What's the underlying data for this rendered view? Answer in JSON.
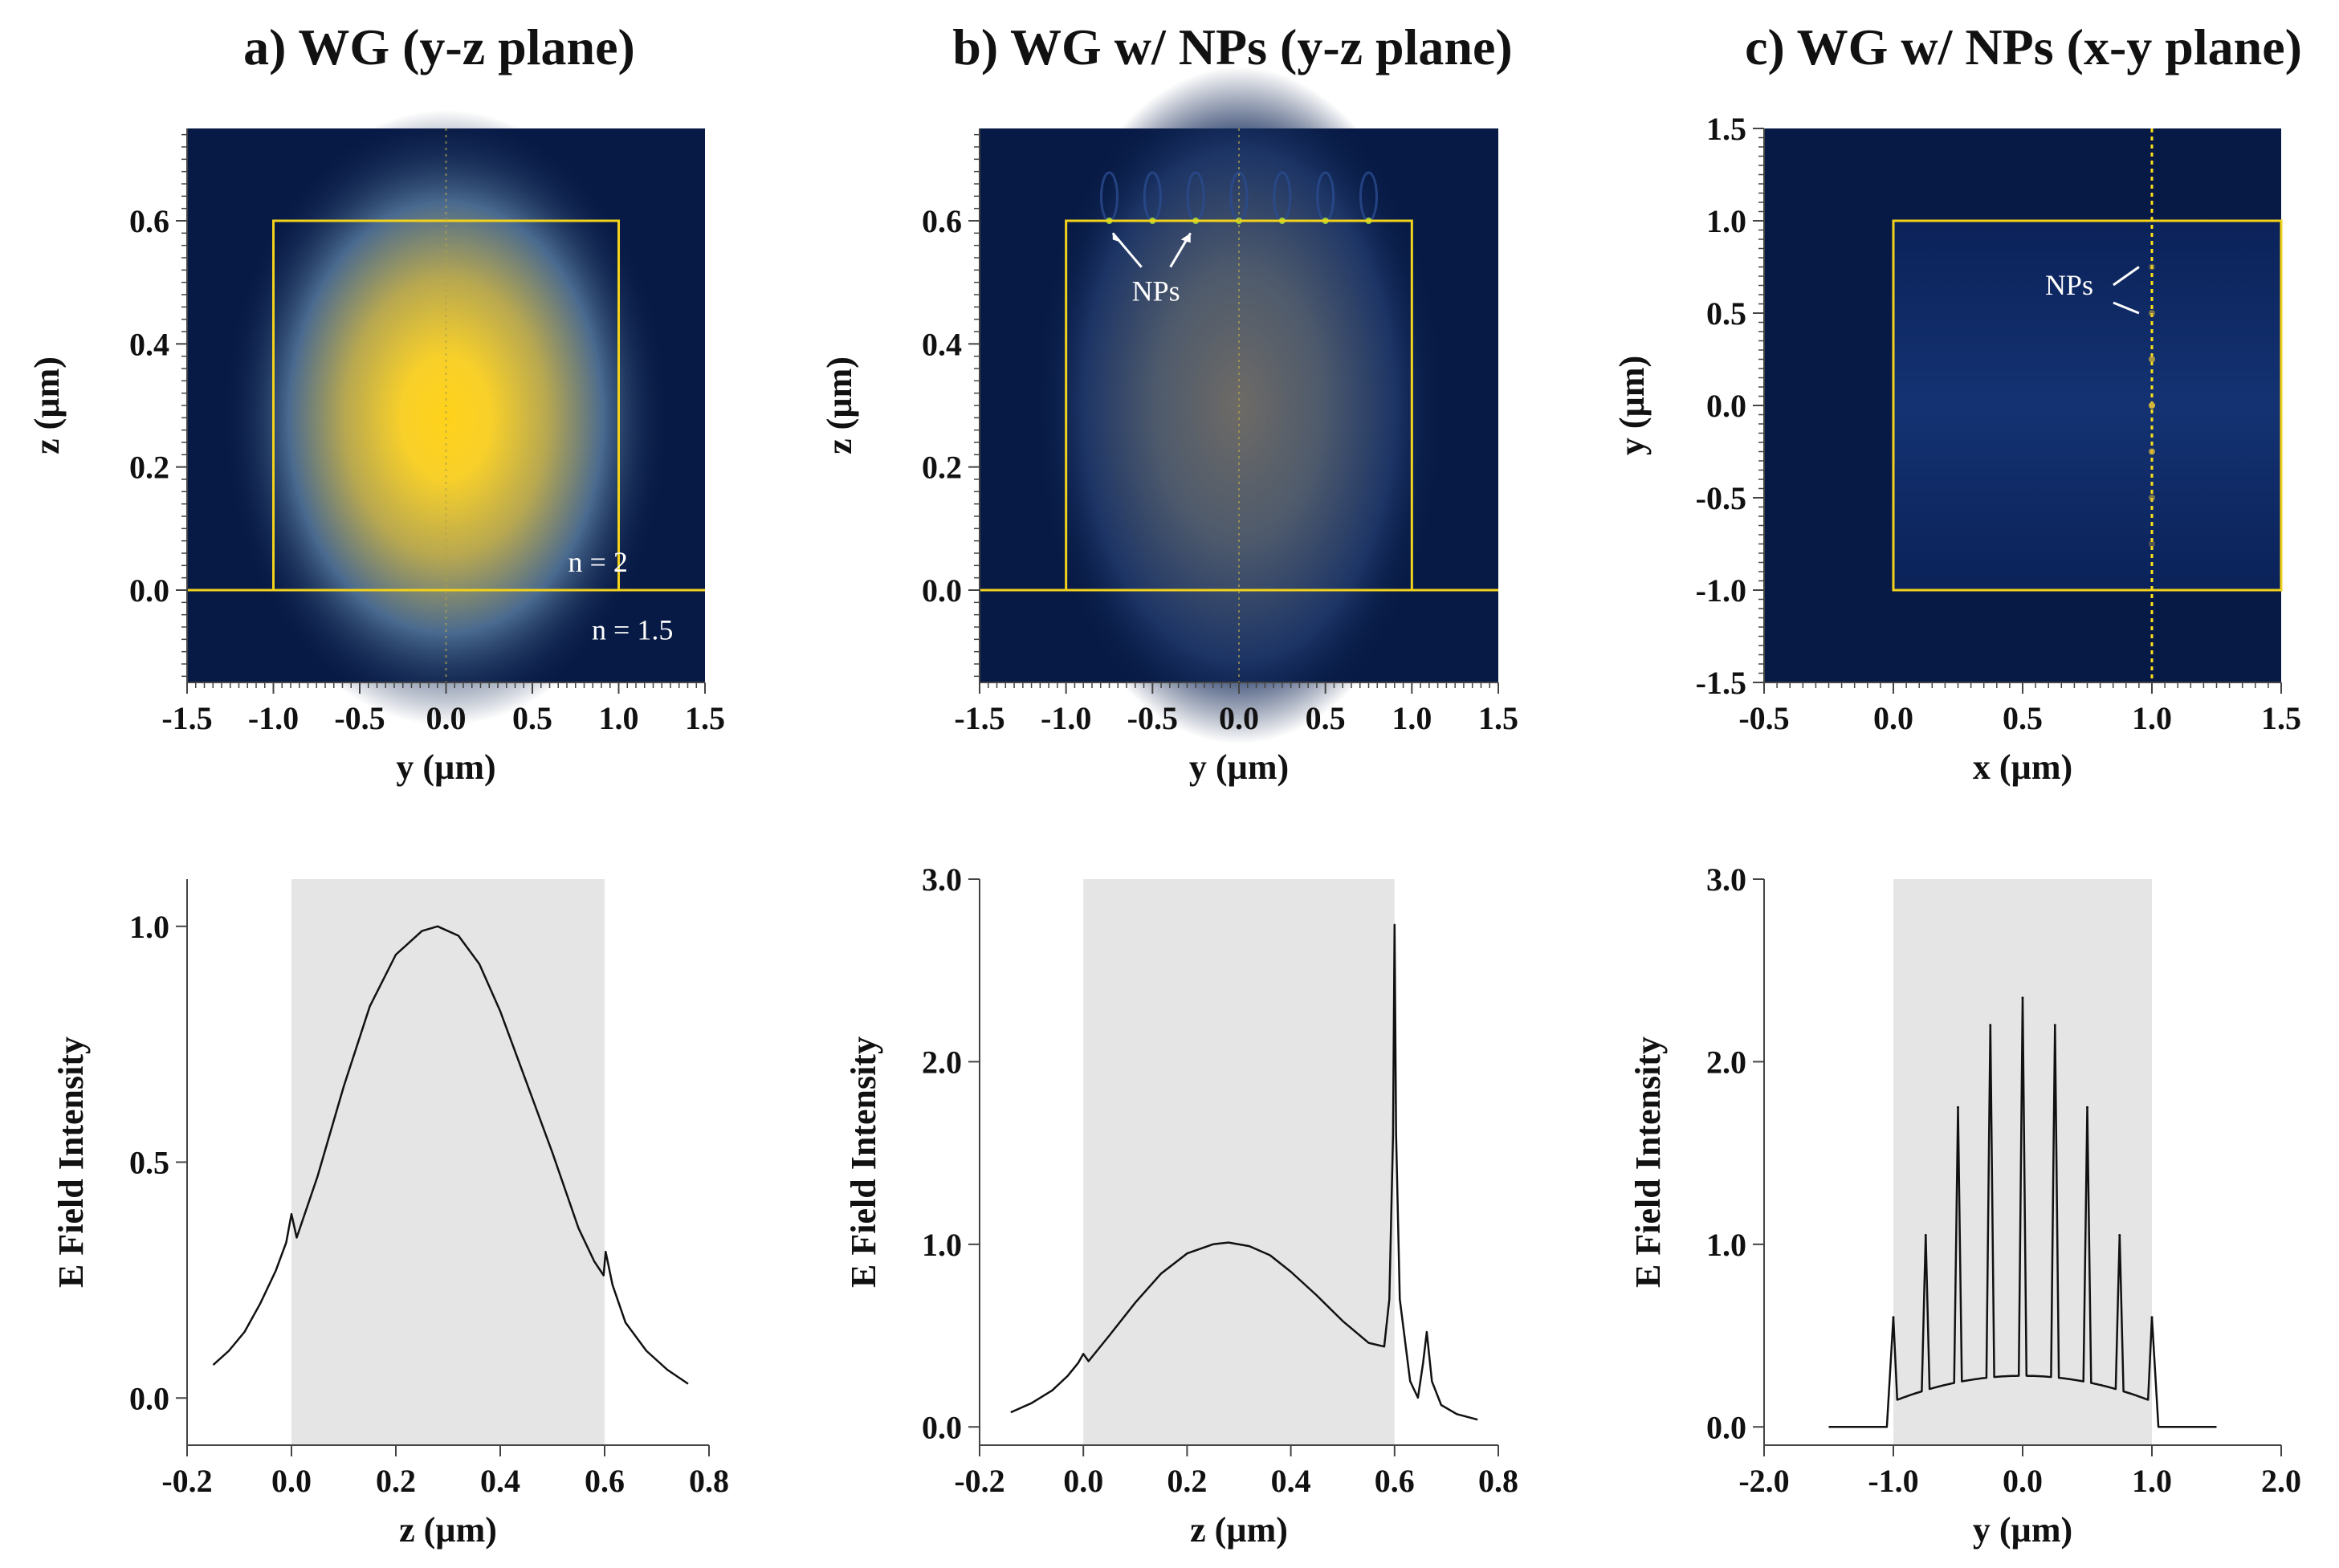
{
  "figure": {
    "titles": [
      "a) WG (y-z plane)",
      "b) WG w/ NPs (y-z plane)",
      "c) WG w/ NPs (x-y plane)"
    ]
  },
  "colors": {
    "background_field": "#071a45",
    "mode_peak": "#ffd21a",
    "guide_outline": "#f2d21b",
    "shade": "#e5e5e5",
    "curve": "#111111"
  },
  "chart_data": [
    {
      "id": "a-map",
      "type": "heatmap",
      "title": "a) WG (y-z plane)",
      "xlabel": "y (µm)",
      "ylabel": "z (µm)",
      "xlim": [
        -1.5,
        1.5
      ],
      "ylim": [
        -0.15,
        0.75
      ],
      "xticks": [
        "-1.5",
        "-1.0",
        "-0.5",
        "0.0",
        "0.5",
        "1.0",
        "1.5"
      ],
      "yticks": [
        "0.0",
        "0.2",
        "0.4",
        "0.6"
      ],
      "waveguide": {
        "y": [
          -1.0,
          1.0
        ],
        "z": [
          0.0,
          0.6
        ]
      },
      "mode_center": {
        "y": 0.0,
        "z": 0.28
      },
      "annotations": [
        "n = 2",
        "n = 1.5"
      ]
    },
    {
      "id": "b-map",
      "type": "heatmap",
      "title": "b) WG w/ NPs (y-z plane)",
      "xlabel": "y (µm)",
      "ylabel": "z (µm)",
      "xlim": [
        -1.5,
        1.5
      ],
      "ylim": [
        -0.15,
        0.75
      ],
      "xticks": [
        "-1.5",
        "-1.0",
        "-0.5",
        "0.0",
        "0.5",
        "1.0",
        "1.5"
      ],
      "yticks": [
        "0.0",
        "0.2",
        "0.4",
        "0.6"
      ],
      "waveguide": {
        "y": [
          -1.0,
          1.0
        ],
        "z": [
          0.0,
          0.6
        ]
      },
      "np_positions_y": [
        -0.75,
        -0.5,
        -0.25,
        0.0,
        0.25,
        0.5,
        0.75
      ],
      "np_z": 0.6,
      "annotations": [
        "NPs"
      ]
    },
    {
      "id": "c-map",
      "type": "heatmap",
      "title": "c) WG w/ NPs (x-y plane)",
      "xlabel": "x (µm)",
      "ylabel": "y (µm)",
      "xlim": [
        -0.5,
        1.5
      ],
      "ylim": [
        -1.5,
        1.5
      ],
      "xticks": [
        "-0.5",
        "0.0",
        "0.5",
        "1.0",
        "1.5"
      ],
      "yticks": [
        "-1.5",
        "-1.0",
        "-0.5",
        "0.0",
        "0.5",
        "1.0",
        "1.5"
      ],
      "waveguide": {
        "x": [
          0.0,
          1.5
        ],
        "y": [
          -1.0,
          1.0
        ]
      },
      "np_x": 1.0,
      "np_positions_y": [
        -0.75,
        -0.5,
        -0.25,
        0.0,
        0.25,
        0.5,
        0.75
      ],
      "annotations": [
        "NPs"
      ]
    },
    {
      "id": "a-line",
      "type": "line",
      "xlabel": "z (µm)",
      "ylabel": "E Field Intensity",
      "xlim": [
        -0.2,
        0.8
      ],
      "ylim": [
        -0.1,
        1.1
      ],
      "xticks": [
        "-0.2",
        "0.0",
        "0.2",
        "0.4",
        "0.6",
        "0.8"
      ],
      "yticks": [
        "0.0",
        "0.5",
        "1.0"
      ],
      "shaded_region": [
        0.0,
        0.6
      ],
      "x": [
        -0.15,
        -0.12,
        -0.09,
        -0.06,
        -0.03,
        -0.01,
        0.0,
        0.01,
        0.05,
        0.1,
        0.15,
        0.2,
        0.25,
        0.28,
        0.32,
        0.36,
        0.4,
        0.45,
        0.5,
        0.55,
        0.58,
        0.598,
        0.602,
        0.615,
        0.64,
        0.68,
        0.72,
        0.76
      ],
      "values": [
        0.07,
        0.1,
        0.14,
        0.2,
        0.27,
        0.33,
        0.39,
        0.34,
        0.47,
        0.66,
        0.83,
        0.94,
        0.99,
        1.0,
        0.98,
        0.92,
        0.82,
        0.67,
        0.52,
        0.36,
        0.29,
        0.26,
        0.31,
        0.24,
        0.16,
        0.1,
        0.06,
        0.03
      ]
    },
    {
      "id": "b-line",
      "type": "line",
      "xlabel": "z (µm)",
      "ylabel": "E Field Intensity",
      "xlim": [
        -0.2,
        0.8
      ],
      "ylim": [
        -0.1,
        3.0
      ],
      "xticks": [
        "-0.2",
        "0.0",
        "0.2",
        "0.4",
        "0.6",
        "0.8"
      ],
      "yticks": [
        "0.0",
        "1.0",
        "2.0",
        "3.0"
      ],
      "shaded_region": [
        0.0,
        0.6
      ],
      "x": [
        -0.14,
        -0.1,
        -0.06,
        -0.03,
        -0.01,
        0.0,
        0.01,
        0.05,
        0.1,
        0.15,
        0.2,
        0.25,
        0.28,
        0.32,
        0.36,
        0.4,
        0.45,
        0.5,
        0.55,
        0.58,
        0.59,
        0.597,
        0.6,
        0.603,
        0.61,
        0.63,
        0.645,
        0.655,
        0.662,
        0.672,
        0.69,
        0.72,
        0.76
      ],
      "values": [
        0.08,
        0.13,
        0.2,
        0.28,
        0.35,
        0.4,
        0.36,
        0.5,
        0.68,
        0.84,
        0.95,
        1.0,
        1.01,
        0.99,
        0.94,
        0.85,
        0.72,
        0.58,
        0.46,
        0.44,
        0.7,
        1.6,
        2.75,
        1.6,
        0.7,
        0.25,
        0.16,
        0.35,
        0.52,
        0.25,
        0.12,
        0.07,
        0.04
      ]
    },
    {
      "id": "c-line",
      "type": "line",
      "xlabel": "y (µm)",
      "ylabel": "E Field Intensity",
      "xlim": [
        -2.0,
        2.0
      ],
      "ylim": [
        -0.1,
        3.0
      ],
      "xticks": [
        "-2.0",
        "-1.0",
        "0.0",
        "1.0",
        "2.0"
      ],
      "yticks": [
        "0.0",
        "1.0",
        "2.0",
        "3.0"
      ],
      "shaded_region": [
        -1.0,
        1.0
      ],
      "baseline_inside": "0.28 - 0.14 * y^2",
      "x": [
        -1.5,
        -1.05
      ],
      "values": [
        0.0,
        0.0
      ],
      "peaks": [
        {
          "y": -1.0,
          "value": 0.6
        },
        {
          "y": -0.75,
          "value": 1.05
        },
        {
          "y": -0.5,
          "value": 1.75
        },
        {
          "y": -0.25,
          "value": 2.2
        },
        {
          "y": 0.0,
          "value": 2.35
        },
        {
          "y": 0.25,
          "value": 2.2
        },
        {
          "y": 0.5,
          "value": 1.75
        },
        {
          "y": 0.75,
          "value": 1.05
        },
        {
          "y": 1.0,
          "value": 0.6
        }
      ]
    }
  ]
}
